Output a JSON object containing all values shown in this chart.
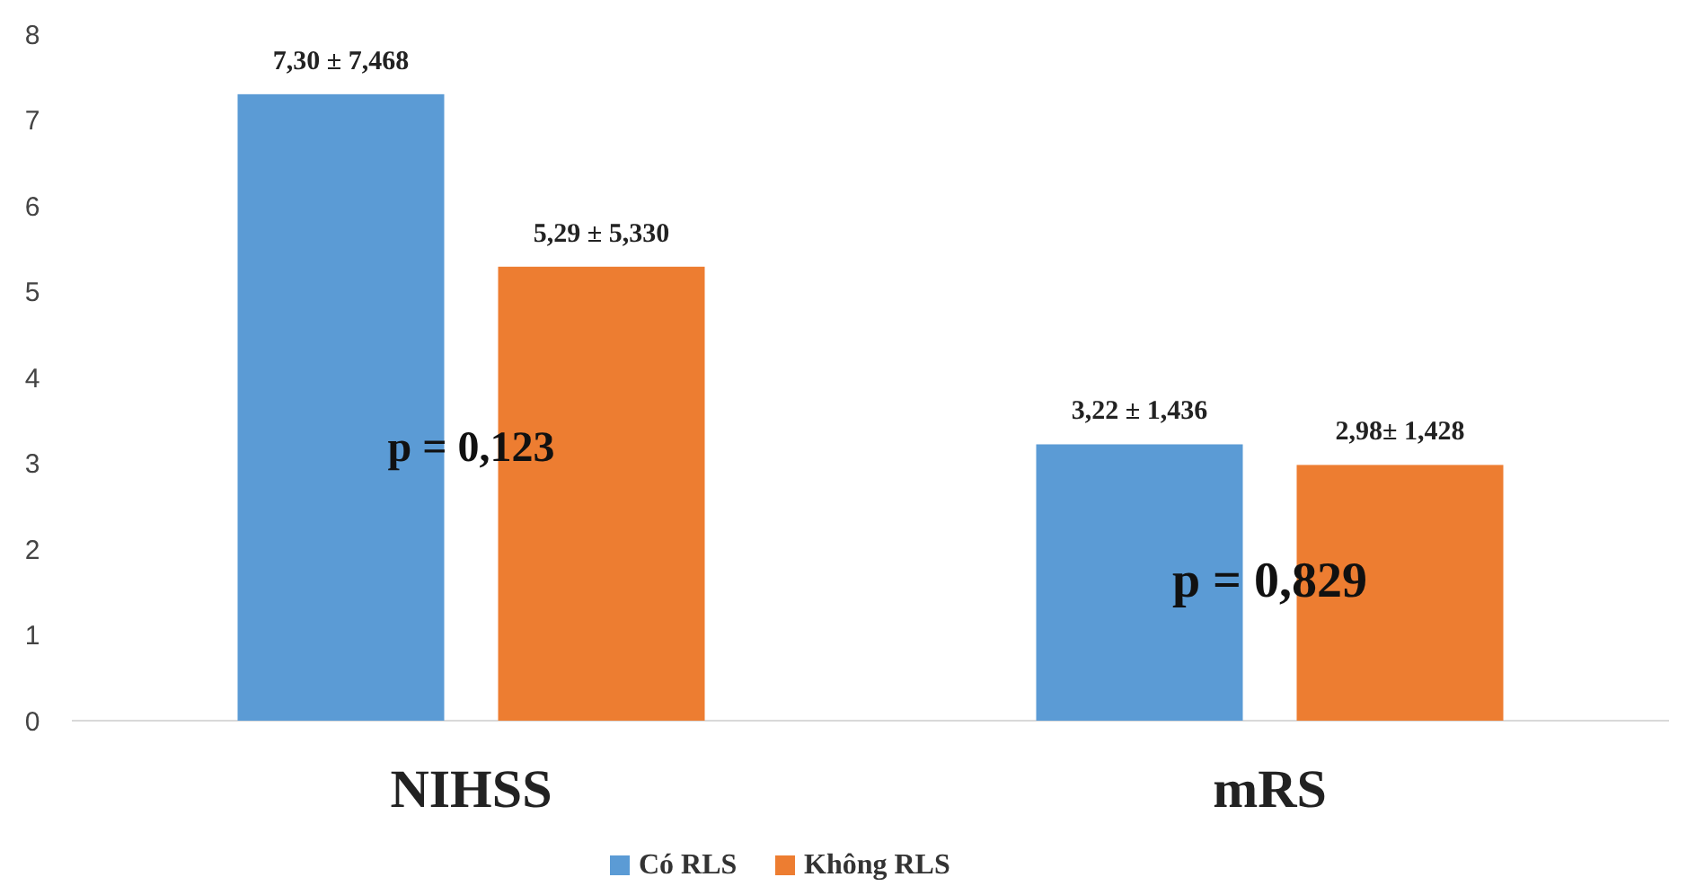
{
  "chart_data": {
    "type": "bar",
    "categories": [
      "NIHSS",
      "mRS"
    ],
    "series": [
      {
        "name": "Có RLS",
        "color": "#5b9bd5",
        "values": [
          7.3,
          3.22
        ],
        "value_labels": [
          "7,30 ± 7,468",
          "3,22 ± 1,436"
        ]
      },
      {
        "name": "Không RLS",
        "color": "#ed7d31",
        "values": [
          5.29,
          2.98
        ],
        "value_labels": [
          "5,29 ± 5,330",
          "2,98± 1,428"
        ]
      }
    ],
    "ylim": [
      0,
      8
    ],
    "yticks": [
      0,
      1,
      2,
      3,
      4,
      5,
      6,
      7,
      8
    ],
    "grid": false,
    "legend": "bottom",
    "annotations": [
      "p = 0,123",
      "p = 0,829"
    ]
  }
}
